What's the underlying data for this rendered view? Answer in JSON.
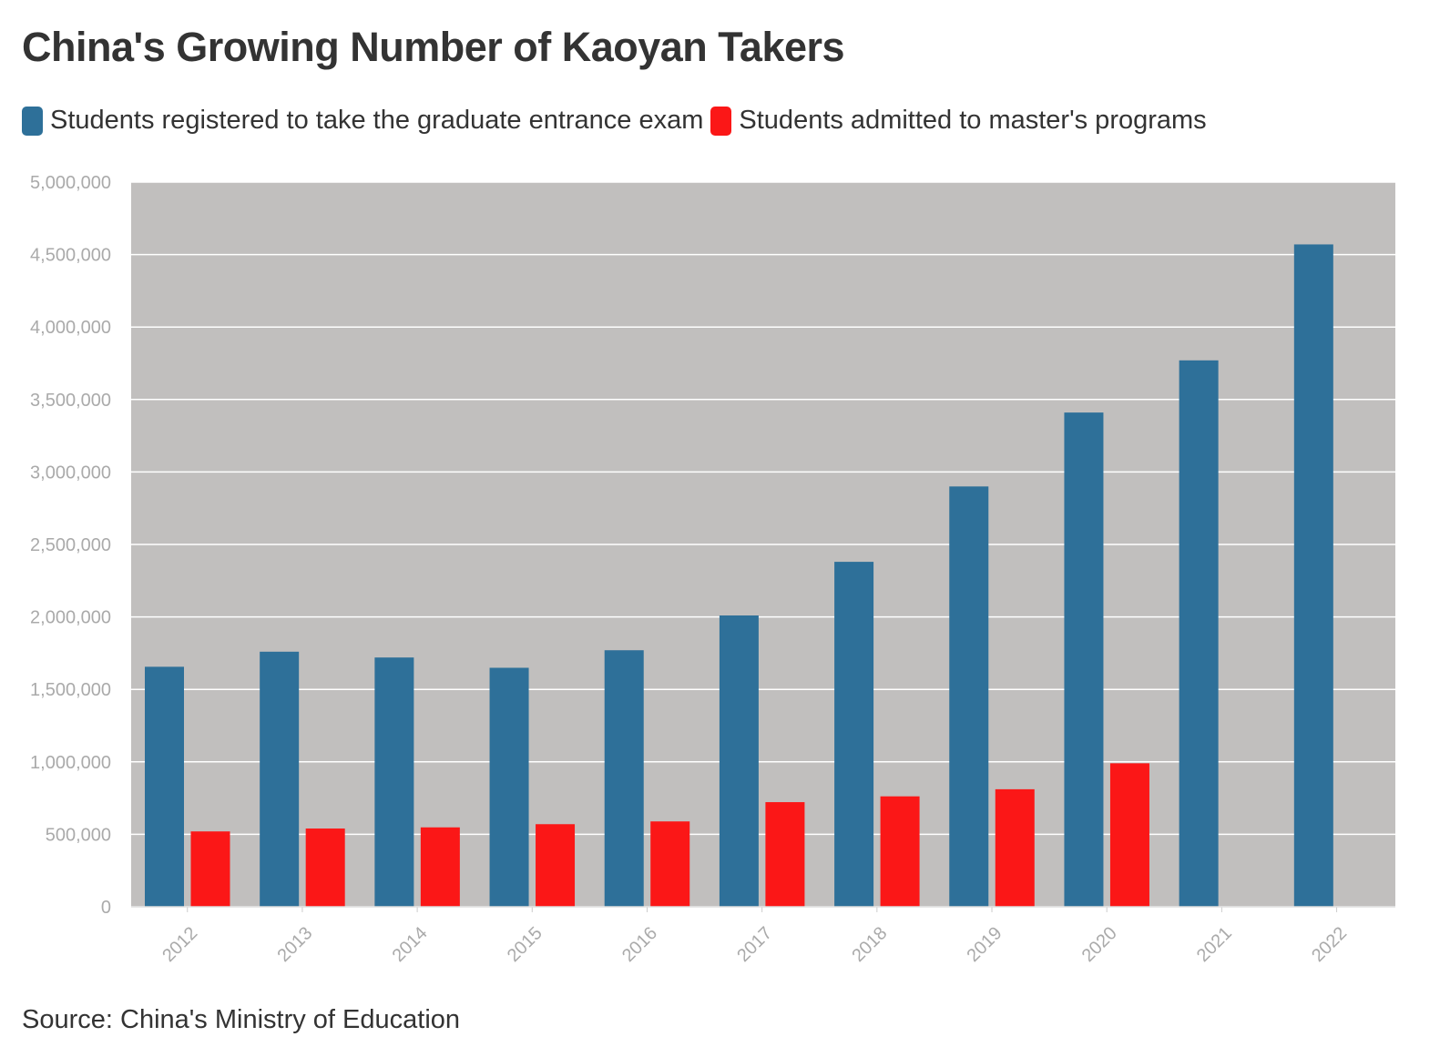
{
  "title": "China's Growing Number of Kaoyan Takers",
  "source": {
    "prefix": "Source: ",
    "text": "China's Ministry of Education"
  },
  "colors": {
    "registered": "#2e7099",
    "admitted": "#fb1717",
    "plot_background": "#c1bfbe",
    "gridline": "#ffffff",
    "tick_label": "#aaaaaa"
  },
  "chart_data": {
    "type": "bar",
    "title": "China's Growing Number of Kaoyan Takers",
    "categories": [
      "2012",
      "2013",
      "2014",
      "2015",
      "2016",
      "2017",
      "2018",
      "2019",
      "2020",
      "2021",
      "2022"
    ],
    "series": [
      {
        "name": "Students registered to take the graduate entrance exam",
        "color": "#2e7099",
        "values": [
          1656000,
          1760000,
          1720000,
          1649000,
          1770000,
          2010000,
          2380000,
          2900000,
          3410000,
          3770000,
          4570000
        ]
      },
      {
        "name": "Students admitted to master's programs",
        "color": "#fb1717",
        "values": [
          520000,
          540000,
          548000,
          570000,
          589000,
          722000,
          762000,
          811000,
          990000,
          null,
          null
        ]
      }
    ],
    "ylim": [
      0,
      5000000
    ],
    "yticks": [
      0,
      500000,
      1000000,
      1500000,
      2000000,
      2500000,
      3000000,
      3500000,
      4000000,
      4500000,
      5000000
    ],
    "ytick_labels": [
      "0",
      "500,000",
      "1,000,000",
      "1,500,000",
      "2,000,000",
      "2,500,000",
      "3,000,000",
      "3,500,000",
      "4,000,000",
      "4,500,000",
      "5,000,000"
    ],
    "xlabel": "",
    "ylabel": "",
    "grid": true,
    "legend": "top-left",
    "x_tick_rotation": "diagonal"
  }
}
